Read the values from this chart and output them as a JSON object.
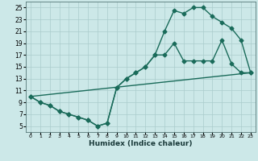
{
  "title": "",
  "xlabel": "Humidex (Indice chaleur)",
  "background_color": "#cce8e8",
  "grid_color": "#aacccc",
  "line_color": "#1a6b5a",
  "markersize": 2.5,
  "linewidth": 1.0,
  "xlim": [
    -0.5,
    23.5
  ],
  "ylim": [
    4.0,
    26.0
  ],
  "xticks": [
    0,
    1,
    2,
    3,
    4,
    5,
    6,
    7,
    8,
    9,
    10,
    11,
    12,
    13,
    14,
    15,
    16,
    17,
    18,
    19,
    20,
    21,
    22,
    23
  ],
  "yticks": [
    5,
    7,
    9,
    11,
    13,
    15,
    17,
    19,
    21,
    23,
    25
  ],
  "line1_x": [
    0,
    1,
    2,
    3,
    4,
    5,
    6,
    7,
    8,
    9,
    10,
    11,
    12,
    13,
    14,
    15,
    16,
    17,
    18,
    19,
    20,
    21,
    22,
    23
  ],
  "line1_y": [
    10,
    9,
    8.5,
    7.5,
    7,
    6.5,
    6,
    5,
    5.5,
    11.5,
    13,
    14,
    15,
    17,
    17,
    19,
    16,
    16,
    16,
    16,
    19.5,
    15.5,
    14,
    14
  ],
  "line2_x": [
    0,
    1,
    2,
    3,
    4,
    5,
    6,
    7,
    8,
    9,
    10,
    11,
    12,
    13,
    14,
    15,
    16,
    17,
    18,
    19,
    20,
    21,
    22,
    23
  ],
  "line2_y": [
    10,
    9,
    8.5,
    7.5,
    7,
    6.5,
    6,
    5,
    5.5,
    11.5,
    13,
    14,
    15,
    17,
    21,
    24.5,
    24,
    25,
    25,
    23.5,
    22.5,
    21.5,
    19.5,
    14
  ],
  "line3_x": [
    0,
    23
  ],
  "line3_y": [
    10,
    14
  ]
}
